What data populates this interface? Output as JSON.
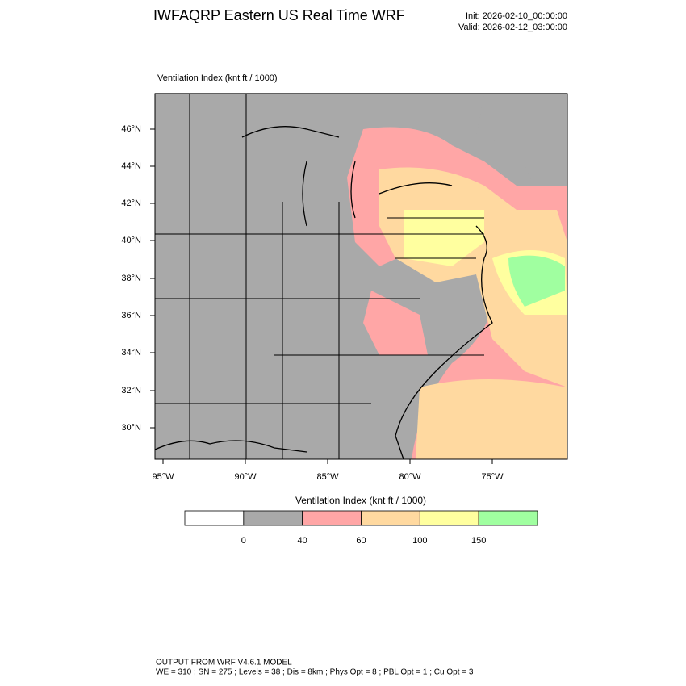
{
  "header": {
    "title": "IWFAQRP Eastern US Real Time WRF",
    "init": "Init: 2026-02-10_00:00:00",
    "valid": "Valid: 2026-02-12_03:00:00"
  },
  "map": {
    "title": "Ventilation Index   (knt ft / 1000)",
    "lat_labels": [
      "46°N",
      "44°N",
      "42°N",
      "40°N",
      "38°N",
      "36°N",
      "34°N",
      "32°N",
      "30°N"
    ],
    "lon_labels": [
      "95°W",
      "90°W",
      "85°W",
      "80°W",
      "75°W"
    ]
  },
  "colorbar": {
    "title": "Ventilation Index  (knt ft / 1000)",
    "levels": [
      0,
      40,
      60,
      100,
      150
    ],
    "colors": [
      "#ffffff",
      "#a9a9a9",
      "#ffa6a6",
      "#ffd9a0",
      "#ffff9f",
      "#a0ffa0"
    ]
  },
  "footer": {
    "line1": "OUTPUT FROM WRF V4.6.1 MODEL",
    "line2": "WE = 310 ; SN = 275 ; Levels = 38 ; Dis = 8km ; Phys Opt = 8 ; PBL Opt = 1 ; Cu Opt = 3"
  }
}
